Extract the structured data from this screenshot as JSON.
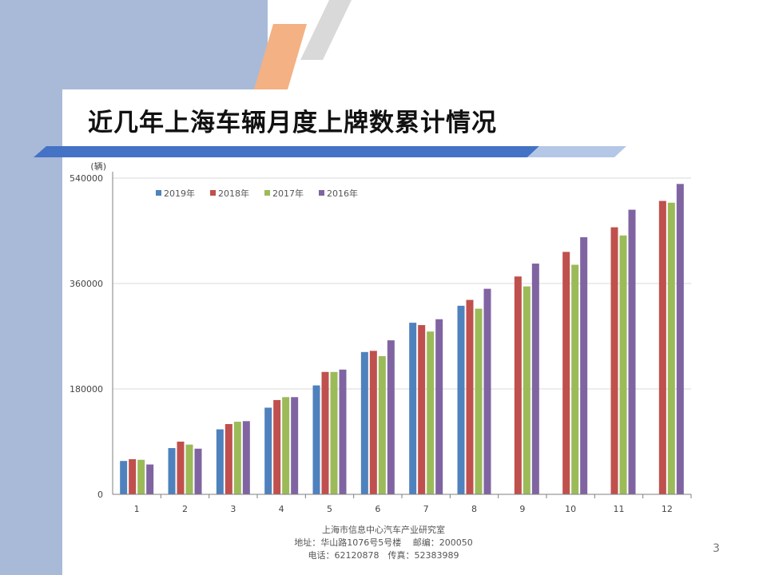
{
  "slide": {
    "title": "近几年上海车辆月度上牌数累计情况",
    "page_number": "3",
    "footer": {
      "org": "上海市信息中心汽车产业研究室",
      "address": "地址：华山路1076号5号楼　 邮编：200050",
      "phone": "电话：62120878　传真：52383989"
    }
  },
  "colors": {
    "band": "#a9bad8",
    "orange_stripe": "#f4b183",
    "grey_stripe": "#d9d9d9",
    "rule_blue": "#4472c4",
    "rule_light": "#b4c7e7"
  },
  "chart_data": {
    "type": "bar",
    "ylabel": "(辆)",
    "xlabel": "",
    "ylim": [
      0,
      540000
    ],
    "yticks": [
      "0",
      "180000",
      "360000",
      "540000"
    ],
    "grid": true,
    "legend_position": "top-left",
    "categories": [
      "1",
      "2",
      "3",
      "4",
      "5",
      "6",
      "7",
      "8",
      "9",
      "10",
      "11",
      "12"
    ],
    "series": [
      {
        "name": "2019年",
        "color": "#4f81bd",
        "values": [
          57000,
          79000,
          111000,
          148000,
          186000,
          243000,
          293000,
          322000,
          null,
          null,
          null,
          null
        ]
      },
      {
        "name": "2018年",
        "color": "#c0504d",
        "values": [
          60000,
          90000,
          120000,
          161000,
          209000,
          245000,
          289000,
          332000,
          372000,
          414000,
          456000,
          501000
        ]
      },
      {
        "name": "2017年",
        "color": "#9bbb59",
        "values": [
          59000,
          85000,
          124000,
          166000,
          209000,
          236000,
          278000,
          317000,
          355000,
          392000,
          442000,
          498000
        ]
      },
      {
        "name": "2016年",
        "color": "#8064a2",
        "values": [
          51000,
          78000,
          125000,
          166000,
          213000,
          263000,
          299000,
          351000,
          394000,
          439000,
          486000,
          530000
        ]
      }
    ]
  }
}
